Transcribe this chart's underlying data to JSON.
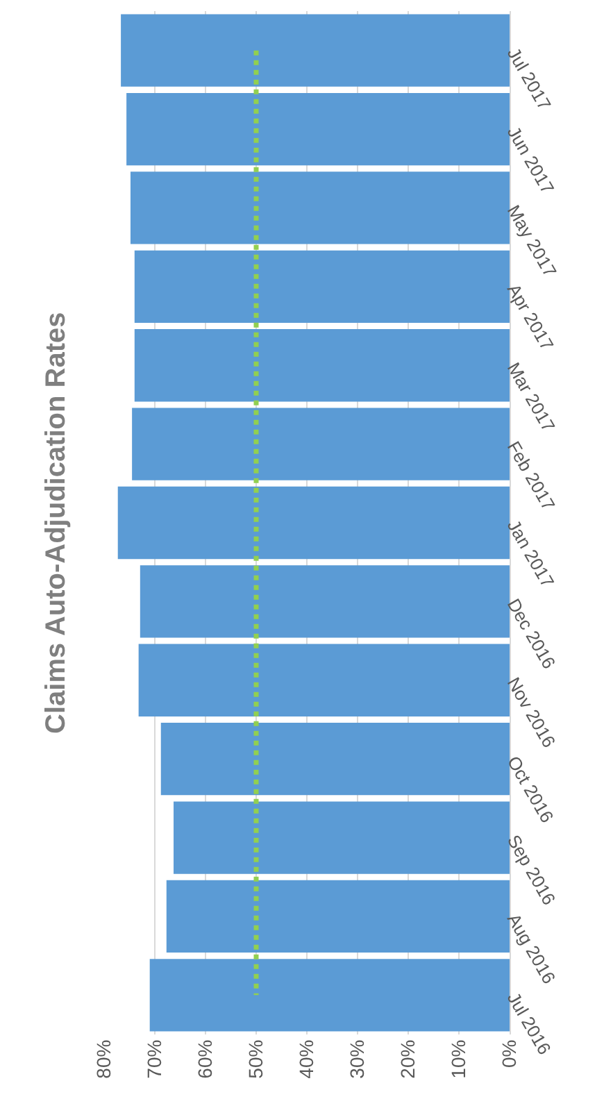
{
  "chart_data": {
    "type": "bar",
    "title": "Claims Auto-Adjudication Rates",
    "orientation": "horizontal",
    "categories": [
      "Jul 2017",
      "Jun 2017",
      "May 2017",
      "Apr 2017",
      "Mar 2017",
      "Feb 2017",
      "Jan 2017",
      "Dec 2016",
      "Nov 2016",
      "Oct 2016",
      "Sep 2016",
      "Aug 2016",
      "Jul 2016"
    ],
    "values": [
      76.7,
      75.6,
      74.8,
      74,
      74,
      74.5,
      77.3,
      72.9,
      73.2,
      68.8,
      66.3,
      67.7,
      71
    ],
    "color": "#5b9bd5",
    "xlim": [
      80,
      0
    ],
    "xticks": [
      {
        "value": 80,
        "label": "80%"
      },
      {
        "value": 70,
        "label": "70%"
      },
      {
        "value": 60,
        "label": "60%"
      },
      {
        "value": 50,
        "label": "50%"
      },
      {
        "value": 40,
        "label": "40%"
      },
      {
        "value": 30,
        "label": "30%"
      },
      {
        "value": 20,
        "label": "20%"
      },
      {
        "value": 10,
        "label": "10%"
      },
      {
        "value": 0,
        "label": "0%"
      }
    ],
    "ref_lines": [
      {
        "axis": "x",
        "value": 50,
        "color": "#92d050",
        "line_style": "dotted"
      }
    ],
    "grid": "x",
    "legend": false
  }
}
